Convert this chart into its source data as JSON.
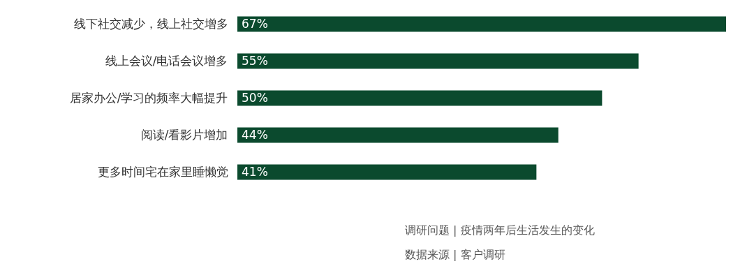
{
  "chart_data": {
    "type": "bar",
    "orientation": "horizontal",
    "categories": [
      "线下社交减少，线上社交增多",
      "线上会议/电话会议增多",
      "居家办公/学习的频率大幅提升",
      "阅读/看影片增加",
      "更多时间宅在家里睡懒觉"
    ],
    "values": [
      67,
      55,
      50,
      44,
      41
    ],
    "value_labels": [
      "67%",
      "55%",
      "50%",
      "44%",
      "41%"
    ],
    "color": "#0b4a2e",
    "tick_labels": false,
    "annotations": [
      "调研问题 | 疫情两年后生活发生的变化",
      "数据来源 | 客户调研"
    ]
  }
}
